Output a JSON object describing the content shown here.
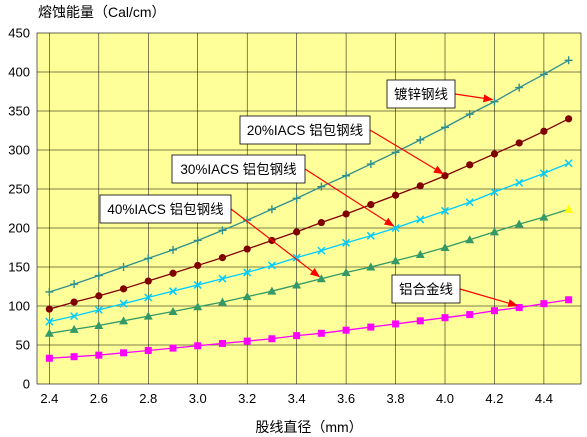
{
  "chart_data": {
    "type": "line",
    "title": "",
    "ylabel": "熔蚀能量（Cal/cm）",
    "xlabel": "股线直径（mm）",
    "xlim": [
      2.35,
      4.55
    ],
    "ylim": [
      0,
      450
    ],
    "xticks": [
      "2.4",
      "2.6",
      "2.8",
      "3.0",
      "3.2",
      "3.4",
      "3.6",
      "3.8",
      "4.0",
      "4.2",
      "4.4"
    ],
    "yticks": [
      "0",
      "50",
      "100",
      "150",
      "200",
      "250",
      "300",
      "350",
      "400",
      "450"
    ],
    "grid": true,
    "plot_background": "#ffff99",
    "x": [
      2.4,
      2.5,
      2.6,
      2.7,
      2.8,
      2.9,
      3.0,
      3.1,
      3.2,
      3.3,
      3.4,
      3.5,
      3.6,
      3.7,
      3.8,
      3.9,
      4.0,
      4.1,
      4.2,
      4.3,
      4.4,
      4.5
    ],
    "series": [
      {
        "name": "镀锌钢线",
        "color": "#2f8f8f",
        "marker": "plus",
        "values": [
          118,
          128,
          139,
          150,
          161,
          172,
          184,
          197,
          210,
          224,
          238,
          253,
          267,
          282,
          297,
          313,
          329,
          346,
          362,
          380,
          397,
          415
        ]
      },
      {
        "name": "20%IACS 铝包钢线",
        "color": "#800000",
        "marker": "circle",
        "values": [
          96,
          105,
          113,
          122,
          132,
          142,
          152,
          162,
          173,
          184,
          195,
          207,
          218,
          230,
          242,
          254,
          267,
          281,
          295,
          309,
          324,
          340
        ]
      },
      {
        "name": "30%IACS 铝包钢线",
        "color": "#00ccff",
        "marker": "cross",
        "values": [
          80,
          87,
          95,
          103,
          111,
          119,
          127,
          135,
          143,
          152,
          162,
          171,
          181,
          190,
          200,
          211,
          222,
          233,
          246,
          258,
          270,
          283
        ]
      },
      {
        "name": "40%IACS 铝包钢线",
        "color": "#339966",
        "marker": "triangle",
        "values": [
          65,
          70,
          75,
          81,
          87,
          93,
          99,
          105,
          112,
          119,
          127,
          135,
          143,
          150,
          158,
          166,
          175,
          185,
          195,
          205,
          214,
          224
        ]
      },
      {
        "name": "铝合金线",
        "color": "#ff00ff",
        "marker": "square",
        "values": [
          33,
          35,
          37,
          40,
          43,
          46,
          49,
          52,
          55,
          58,
          62,
          65,
          69,
          73,
          77,
          81,
          85,
          89,
          94,
          98,
          103,
          108
        ]
      }
    ],
    "annotations": [
      {
        "label": "镀锌钢线",
        "points_to_series": 0,
        "points_to_x": 4.2
      },
      {
        "label": "20%IACS 铝包钢线",
        "points_to_series": 1,
        "points_to_x": 4.0
      },
      {
        "label": "30%IACS 铝包钢线",
        "points_to_series": 2,
        "points_to_x": 3.8
      },
      {
        "label": "40%IACS 铝包钢线",
        "points_to_series": 3,
        "points_to_x": 3.5
      },
      {
        "label": "铝合金线",
        "points_to_series": 4,
        "points_to_x": 4.3
      }
    ],
    "arrow_color": "#ff0000"
  }
}
